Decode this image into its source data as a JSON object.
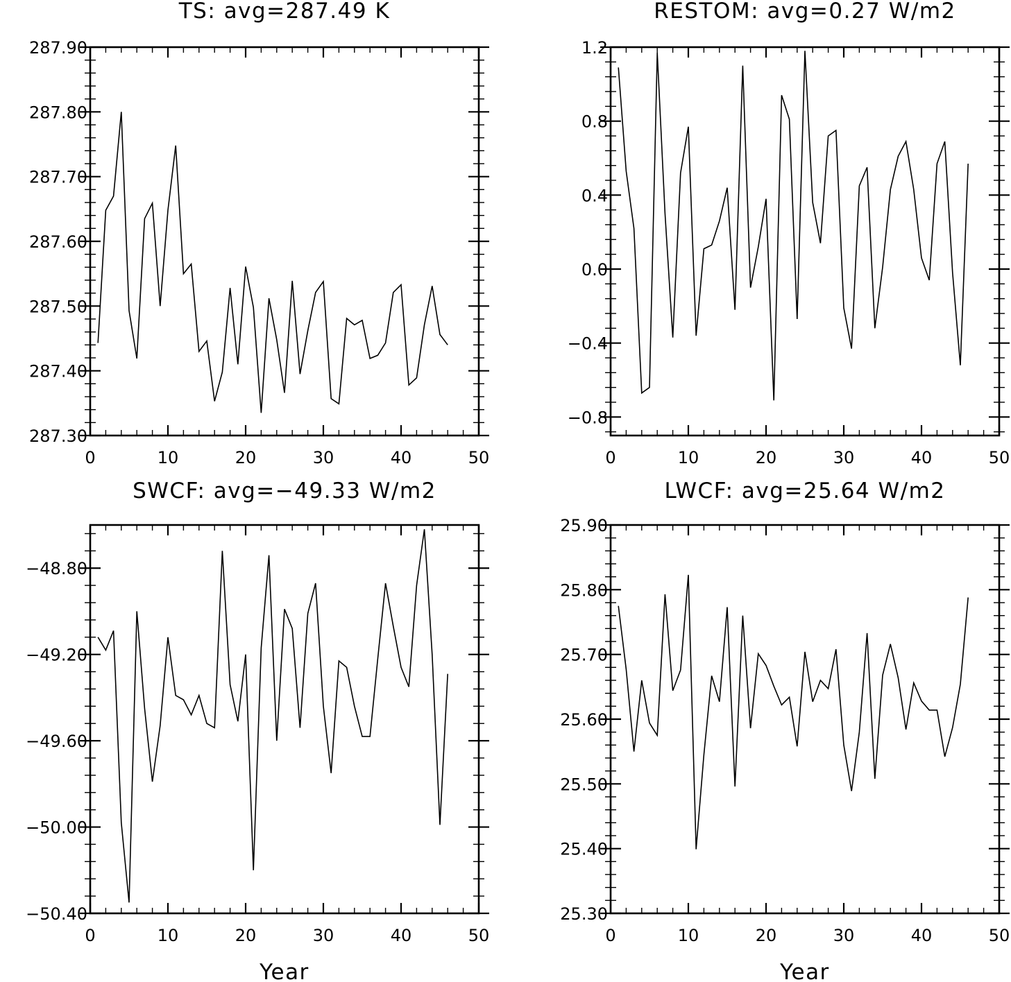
{
  "chart_data": [
    {
      "type": "line",
      "title": "TS: avg=287.49 K",
      "xlabel": "",
      "ylabel": "",
      "xlim": [
        0,
        50
      ],
      "ylim": [
        287.3,
        287.9
      ],
      "xticks": [
        0,
        10,
        20,
        30,
        40,
        50
      ],
      "xtick_labels": [
        "0",
        "10",
        "20",
        "30",
        "40",
        "50"
      ],
      "yticks": [
        287.3,
        287.4,
        287.5,
        287.6,
        287.7,
        287.8,
        287.9
      ],
      "ytick_labels": [
        "287.30",
        "287.40",
        "287.50",
        "287.60",
        "287.70",
        "287.80",
        "287.90"
      ],
      "grid": false,
      "x": [
        1,
        2,
        3,
        4,
        5,
        6,
        7,
        8,
        9,
        10,
        11,
        12,
        13,
        14,
        15,
        16,
        17,
        18,
        19,
        20,
        21,
        22,
        23,
        24,
        25,
        26,
        27,
        28,
        29,
        30,
        31,
        32,
        33,
        34,
        35,
        36,
        37,
        38,
        39,
        40,
        41,
        42,
        43,
        44,
        45,
        46
      ],
      "values": [
        287.443,
        287.648,
        287.67,
        287.8,
        287.493,
        287.419,
        287.635,
        287.659,
        287.5,
        287.648,
        287.748,
        287.55,
        287.565,
        287.43,
        287.446,
        287.353,
        287.398,
        287.528,
        287.41,
        287.561,
        287.498,
        287.335,
        287.512,
        287.448,
        287.366,
        287.539,
        287.395,
        287.462,
        287.521,
        287.538,
        287.357,
        287.349,
        287.481,
        287.471,
        287.478,
        287.419,
        287.424,
        287.443,
        287.521,
        287.533,
        287.378,
        287.389,
        287.471,
        287.531,
        287.456,
        287.44
      ]
    },
    {
      "type": "line",
      "title": "RESTOM: avg=0.27 W/m2",
      "xlabel": "",
      "ylabel": "",
      "xlim": [
        0,
        50
      ],
      "ylim": [
        -0.9,
        1.2
      ],
      "xticks": [
        0,
        10,
        20,
        30,
        40,
        50
      ],
      "xtick_labels": [
        "0",
        "10",
        "20",
        "30",
        "40",
        "50"
      ],
      "yticks": [
        -0.8,
        -0.4,
        0.0,
        0.4,
        0.8,
        1.2
      ],
      "ytick_labels": [
        "−0.8",
        "−0.4",
        "0.0",
        "0.4",
        "0.8",
        "1.2"
      ],
      "grid": false,
      "x": [
        1,
        2,
        3,
        4,
        5,
        6,
        7,
        8,
        9,
        10,
        11,
        12,
        13,
        14,
        15,
        16,
        17,
        18,
        19,
        20,
        21,
        22,
        23,
        24,
        25,
        26,
        27,
        28,
        29,
        30,
        31,
        32,
        33,
        34,
        35,
        36,
        37,
        38,
        39,
        40,
        41,
        42,
        43,
        44,
        45,
        46
      ],
      "values": [
        1.09,
        0.53,
        0.22,
        -0.67,
        -0.64,
        1.17,
        0.3,
        -0.37,
        0.52,
        0.77,
        -0.36,
        0.11,
        0.13,
        0.26,
        0.44,
        -0.22,
        1.1,
        -0.1,
        0.12,
        0.38,
        -0.71,
        0.94,
        0.81,
        -0.27,
        1.18,
        0.36,
        0.14,
        0.72,
        0.75,
        -0.21,
        -0.43,
        0.45,
        0.55,
        -0.32,
        0.01,
        0.43,
        0.61,
        0.69,
        0.43,
        0.06,
        -0.06,
        0.57,
        0.69,
        -0.02,
        -0.52,
        0.57
      ]
    },
    {
      "type": "line",
      "title": "SWCF: avg=−49.33 W/m2",
      "xlabel": "Year",
      "ylabel": "",
      "xlim": [
        0,
        50
      ],
      "ylim": [
        -50.4,
        -48.6
      ],
      "xticks": [
        0,
        10,
        20,
        30,
        40,
        50
      ],
      "xtick_labels": [
        "0",
        "10",
        "20",
        "30",
        "40",
        "50"
      ],
      "yticks": [
        -50.4,
        -50.0,
        -49.6,
        -49.2,
        -48.8
      ],
      "ytick_labels": [
        "−50.40",
        "−50.00",
        "−49.60",
        "−49.20",
        "−48.80"
      ],
      "grid": false,
      "x": [
        1,
        2,
        3,
        4,
        5,
        6,
        7,
        8,
        9,
        10,
        11,
        12,
        13,
        14,
        15,
        16,
        17,
        18,
        19,
        20,
        21,
        22,
        23,
        24,
        25,
        26,
        27,
        28,
        29,
        30,
        31,
        32,
        33,
        34,
        35,
        36,
        37,
        38,
        39,
        40,
        41,
        42,
        43,
        44,
        45,
        46
      ],
      "values": [
        -49.12,
        -49.18,
        -49.09,
        -49.98,
        -50.35,
        -49.0,
        -49.45,
        -49.79,
        -49.53,
        -49.12,
        -49.39,
        -49.41,
        -49.48,
        -49.39,
        -49.52,
        -49.54,
        -48.72,
        -49.34,
        -49.51,
        -49.2,
        -50.2,
        -49.17,
        -48.74,
        -49.6,
        -48.99,
        -49.08,
        -49.54,
        -49.01,
        -48.87,
        -49.44,
        -49.75,
        -49.23,
        -49.26,
        -49.44,
        -49.58,
        -49.58,
        -49.22,
        -48.87,
        -49.07,
        -49.26,
        -49.35,
        -48.88,
        -48.62,
        -49.2,
        -49.99,
        -49.29
      ]
    },
    {
      "type": "line",
      "title": "LWCF: avg=25.64 W/m2",
      "xlabel": "Year",
      "ylabel": "",
      "xlim": [
        0,
        50
      ],
      "ylim": [
        25.3,
        25.9
      ],
      "xticks": [
        0,
        10,
        20,
        30,
        40,
        50
      ],
      "xtick_labels": [
        "0",
        "10",
        "20",
        "30",
        "40",
        "50"
      ],
      "yticks": [
        25.3,
        25.4,
        25.5,
        25.6,
        25.7,
        25.8,
        25.9
      ],
      "ytick_labels": [
        "25.30",
        "25.40",
        "25.50",
        "25.60",
        "25.70",
        "25.80",
        "25.90"
      ],
      "grid": false,
      "x": [
        1,
        2,
        3,
        4,
        5,
        6,
        7,
        8,
        9,
        10,
        11,
        12,
        13,
        14,
        15,
        16,
        17,
        18,
        19,
        20,
        21,
        22,
        23,
        24,
        25,
        26,
        27,
        28,
        29,
        30,
        31,
        32,
        33,
        34,
        35,
        36,
        37,
        38,
        39,
        40,
        41,
        42,
        43,
        44,
        45,
        46
      ],
      "values": [
        25.775,
        25.677,
        25.55,
        25.66,
        25.594,
        25.575,
        25.793,
        25.644,
        25.676,
        25.823,
        25.399,
        25.545,
        25.667,
        25.627,
        25.773,
        25.496,
        25.76,
        25.586,
        25.701,
        25.683,
        25.651,
        25.622,
        25.634,
        25.558,
        25.704,
        25.627,
        25.66,
        25.647,
        25.708,
        25.56,
        25.489,
        25.58,
        25.733,
        25.508,
        25.668,
        25.716,
        25.664,
        25.584,
        25.656,
        25.628,
        25.614,
        25.614,
        25.542,
        25.587,
        25.654,
        25.788
      ]
    }
  ]
}
